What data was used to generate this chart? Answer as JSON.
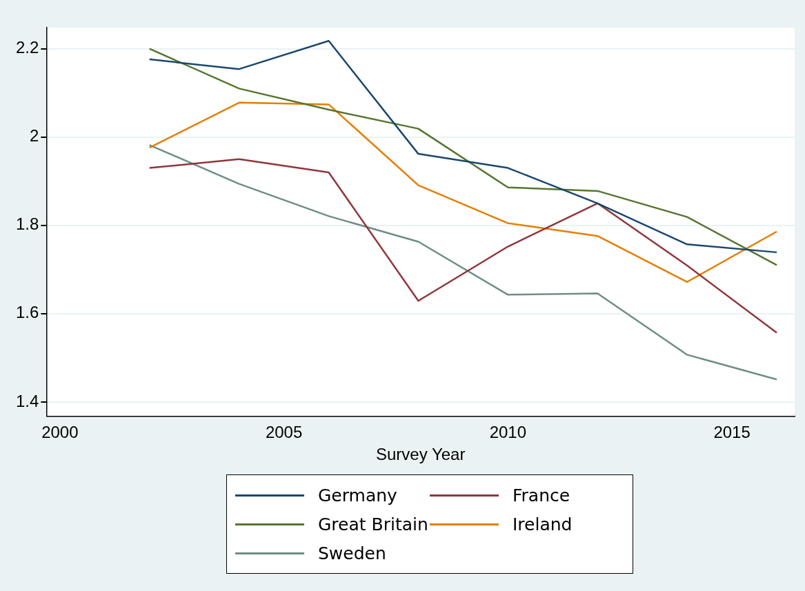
{
  "chart_data": {
    "type": "line",
    "xlabel": "Survey Year",
    "x": [
      2002,
      2004,
      2006,
      2008,
      2010,
      2012,
      2014,
      2016
    ],
    "series": [
      {
        "name": "Germany",
        "color": "#1a476f",
        "values": [
          2.176,
          2.154,
          2.218,
          1.962,
          1.93,
          1.85,
          1.757,
          1.739
        ]
      },
      {
        "name": "France",
        "color": "#90353b",
        "values": [
          1.93,
          1.95,
          1.92,
          1.629,
          1.752,
          1.85,
          1.709,
          1.557
        ]
      },
      {
        "name": "Great Britain",
        "color": "#55752f",
        "values": [
          2.2,
          2.11,
          2.062,
          2.019,
          1.886,
          1.878,
          1.819,
          1.71
        ]
      },
      {
        "name": "Ireland",
        "color": "#e37e00",
        "values": [
          1.976,
          2.078,
          2.074,
          1.891,
          1.805,
          1.776,
          1.672,
          1.786
        ]
      },
      {
        "name": "Sweden",
        "color": "#6e8e84",
        "values": [
          1.982,
          1.894,
          1.821,
          1.763,
          1.643,
          1.646,
          1.507,
          1.451
        ]
      }
    ],
    "xlim": [
      1999.7,
      2016.4
    ],
    "xticks": [
      2000,
      2005,
      2010,
      2015
    ],
    "ylim": [
      1.368,
      2.248
    ],
    "yticks": [
      1.4,
      1.6,
      1.8,
      2,
      2.2
    ],
    "grid": "y",
    "legend": "bottom",
    "marker": "none",
    "line_style": "solid"
  }
}
